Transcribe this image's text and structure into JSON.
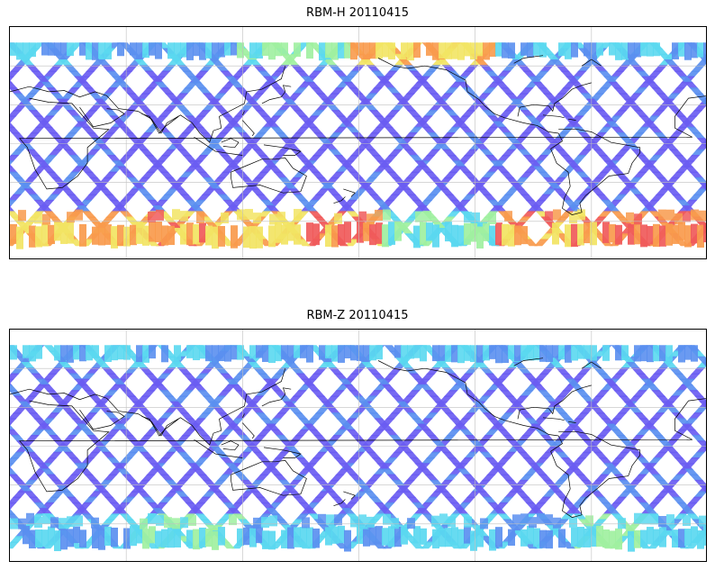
{
  "figure": {
    "panels": [
      {
        "title": "RBM-H 20110415",
        "variable": "RBM-H",
        "date": "20110415",
        "high_activity": true
      },
      {
        "title": "RBM-Z 20110415",
        "variable": "RBM-Z",
        "date": "20110415",
        "high_activity": false
      }
    ],
    "map": {
      "projection": "equirectangular",
      "central_longitude": 180,
      "lon_range": [
        0,
        360
      ],
      "lat_range": [
        -90,
        90
      ],
      "data_lat_range": [
        -78,
        78
      ],
      "gridline_lons": [
        60,
        120,
        180,
        240,
        300
      ],
      "gridline_lats": [
        -60,
        -30,
        0,
        30,
        60
      ]
    },
    "colors": {
      "gridline": "#bfbfbf",
      "coastline": "#000000",
      "low": "#6a5cf2",
      "low_alt": "#5a8ff0",
      "mid": "#5ad8f0",
      "mid_high": "#9ff0a0",
      "high": "#f2e463",
      "very_high": "#f89a4c",
      "extreme": "#f05a5a"
    }
  }
}
